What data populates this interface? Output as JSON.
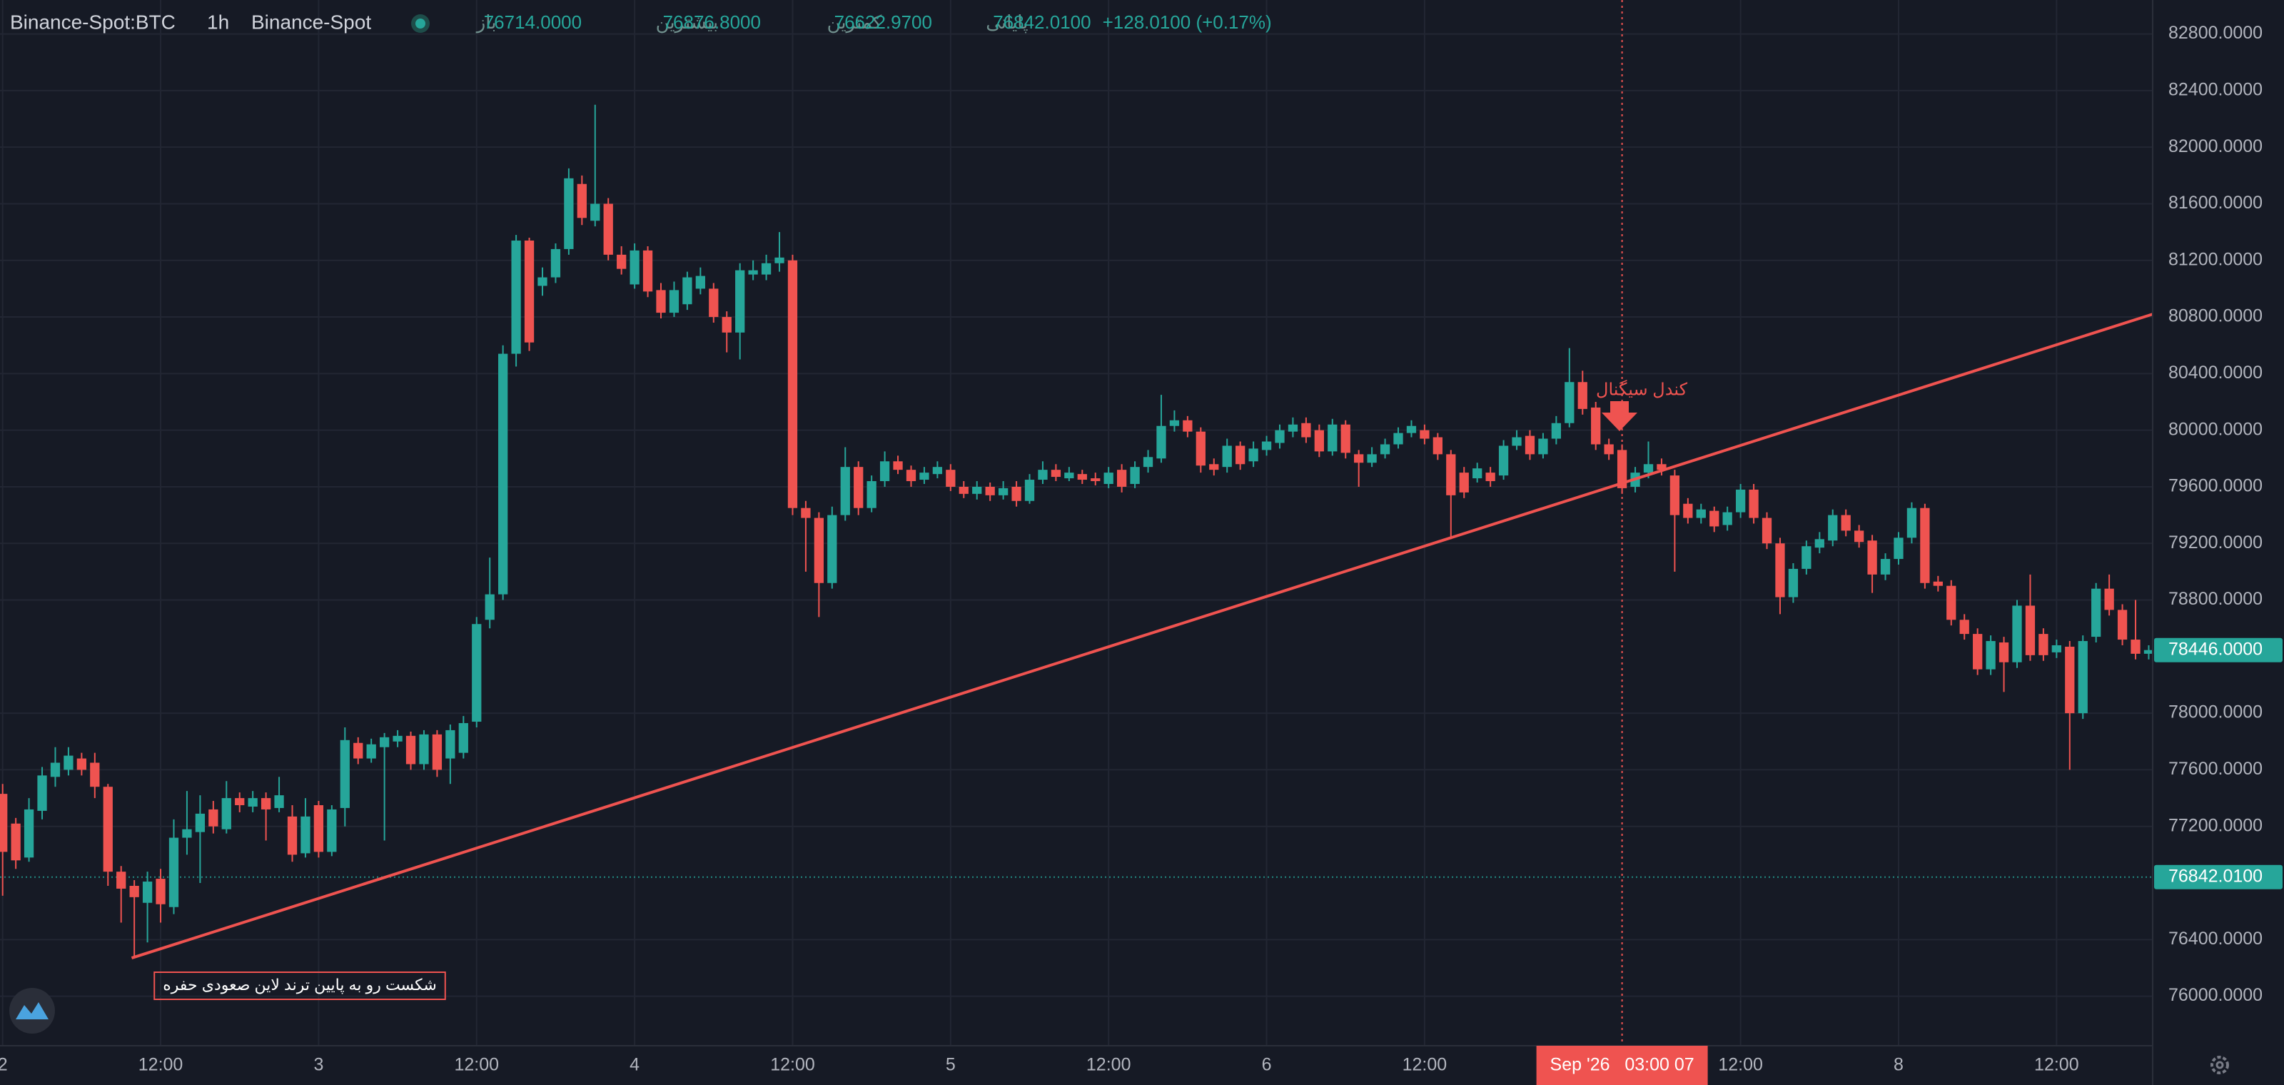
{
  "chart_data": {
    "type": "candlestick",
    "header": {
      "symbol": "Binance-Spot:BTC",
      "interval": "1h",
      "exchange": "Binance-Spot",
      "ohlc": [
        {
          "label": "باز",
          "value": "76714.0000"
        },
        {
          "label": "بیشترین",
          "value": "76876.8000"
        },
        {
          "label": "کمترین",
          "value": "76622.9700"
        },
        {
          "label": "پایانی",
          "value": "76842.0100"
        }
      ],
      "change": "+128.0100 (+0.17%)"
    },
    "up_color": "#26a69a",
    "down_color": "#ef5350",
    "open": [
      77430,
      77220,
      76980,
      77310,
      77550,
      77600,
      77680,
      77650,
      77480,
      76880,
      76780,
      76660,
      76830,
      76630,
      77120,
      77160,
      77320,
      77180,
      77400,
      77340,
      77400,
      77330,
      77270,
      77010,
      77350,
      77020,
      77330,
      77790,
      77680,
      77760,
      77800,
      77840,
      77640,
      77850,
      77680,
      77720,
      77940,
      78660,
      78840,
      80540,
      81340,
      81020,
      81080,
      81280,
      81740,
      81480,
      81600,
      81240,
      81030,
      81270,
      80990,
      80830,
      80890,
      81000,
      81000,
      80800,
      80690,
      81100,
      81100,
      81180,
      81200,
      79450,
      79380,
      78920,
      79400,
      79740,
      79450,
      79640,
      79780,
      79720,
      79650,
      79690,
      79720,
      79600,
      79550,
      79600,
      79540,
      79600,
      79500,
      79650,
      79720,
      79660,
      79690,
      79660,
      79620,
      79720,
      79620,
      79740,
      79800,
      80030,
      80070,
      79990,
      79760,
      79740,
      79890,
      79780,
      79860,
      79910,
      79990,
      80050,
      80000,
      79850,
      80040,
      79830,
      79770,
      79830,
      79900,
      79980,
      80000,
      79950,
      79830,
      79700,
      79660,
      79700,
      79680,
      79890,
      79960,
      79830,
      79940,
      80050,
      80340,
      80160,
      79900,
      79860,
      79600,
      79700,
      79760,
      79680,
      79480,
      79380,
      79430,
      79330,
      79420,
      79580,
      79380,
      79200,
      78820,
      79020,
      79170,
      79220,
      79400,
      79290,
      79220,
      78980,
      79090,
      79240,
      79450,
      78930,
      78900,
      78660,
      78560,
      78310,
      78500,
      78360,
      78760,
      78560,
      78430,
      78470,
      78000,
      78540,
      78880,
      78730,
      78520,
      78420
    ],
    "high": [
      77500,
      77260,
      77400,
      77620,
      77760,
      77760,
      77720,
      77720,
      77500,
      76920,
      76820,
      76880,
      76900,
      77250,
      77450,
      77420,
      77380,
      77520,
      77440,
      77450,
      77440,
      77550,
      77350,
      77400,
      77380,
      77350,
      77900,
      77830,
      77820,
      77860,
      77880,
      77870,
      77880,
      77880,
      77920,
      77980,
      78680,
      79100,
      80600,
      81380,
      81360,
      81150,
      81320,
      81850,
      81800,
      82300,
      81640,
      81300,
      81320,
      81300,
      81040,
      81050,
      81120,
      81150,
      81040,
      80840,
      81180,
      81200,
      81240,
      81400,
      81240,
      79500,
      79420,
      79460,
      79880,
      79780,
      79680,
      79850,
      79820,
      79750,
      79740,
      79780,
      79760,
      79640,
      79640,
      79630,
      79640,
      79640,
      79690,
      79780,
      79760,
      79740,
      79720,
      79700,
      79740,
      79760,
      79780,
      79860,
      80250,
      80140,
      80100,
      80020,
      79800,
      79940,
      79920,
      79920,
      79960,
      80040,
      80090,
      80090,
      80040,
      80080,
      80070,
      79860,
      79880,
      79940,
      80020,
      80070,
      80040,
      79980,
      79860,
      79740,
      79770,
      79740,
      79930,
      80000,
      80000,
      79980,
      80100,
      80580,
      80420,
      80200,
      79940,
      79900,
      79740,
      79920,
      79800,
      79720,
      79520,
      79480,
      79460,
      79460,
      79620,
      79620,
      79420,
      79240,
      79060,
      79220,
      79280,
      79440,
      79440,
      79330,
      79260,
      79130,
      79280,
      79490,
      79480,
      78970,
      78940,
      78700,
      78600,
      78550,
      78540,
      78800,
      78980,
      78600,
      78520,
      78510,
      78550,
      78920,
      78980,
      78770,
      78800,
      78480
    ],
    "low": [
      76710,
      76900,
      76950,
      77250,
      77480,
      77560,
      77560,
      77400,
      76780,
      76520,
      76270,
      76380,
      76520,
      76580,
      77000,
      76800,
      77150,
      77150,
      77300,
      77300,
      77100,
      77300,
      76950,
      76980,
      76980,
      76990,
      77200,
      77640,
      77650,
      77100,
      77760,
      77600,
      77600,
      77550,
      77500,
      77680,
      77900,
      78600,
      78800,
      80450,
      80560,
      80950,
      81040,
      81240,
      81450,
      81440,
      81200,
      81100,
      81000,
      80940,
      80790,
      80800,
      80850,
      80960,
      80760,
      80550,
      80500,
      81060,
      81060,
      81120,
      79400,
      79000,
      78680,
      78880,
      79360,
      79400,
      79420,
      79600,
      79690,
      79600,
      79620,
      79660,
      79570,
      79520,
      79510,
      79500,
      79510,
      79460,
      79480,
      79620,
      79640,
      79640,
      79620,
      79610,
      79590,
      79560,
      79590,
      79700,
      79770,
      79990,
      79950,
      79700,
      79680,
      79700,
      79720,
      79740,
      79820,
      79870,
      79950,
      79910,
      79810,
      79820,
      79800,
      79600,
      79740,
      79800,
      79870,
      79950,
      79900,
      79790,
      79230,
      79520,
      79630,
      79600,
      79650,
      79860,
      79790,
      79800,
      79900,
      80020,
      80110,
      79860,
      79790,
      79550,
      79560,
      79660,
      79680,
      79000,
      79340,
      79340,
      79280,
      79290,
      79380,
      79340,
      79160,
      78700,
      78780,
      78980,
      79130,
      79180,
      79250,
      79170,
      78850,
      78940,
      79050,
      79200,
      78880,
      78860,
      78620,
      78520,
      78270,
      78270,
      78150,
      78320,
      78370,
      78370,
      78390,
      77600,
      77960,
      78500,
      78690,
      78480,
      78380,
      78380
    ],
    "close": [
      77020,
      76960,
      77320,
      77560,
      77650,
      77700,
      77600,
      77480,
      76880,
      76760,
      76700,
      76810,
      76650,
      77120,
      77180,
      77290,
      77200,
      77400,
      77350,
      77400,
      77320,
      77420,
      77000,
      77270,
      77020,
      77320,
      77810,
      77680,
      77780,
      77830,
      77840,
      77640,
      77850,
      77600,
      77880,
      77930,
      78630,
      78840,
      80540,
      81340,
      80620,
      81080,
      81280,
      81780,
      81500,
      81600,
      81240,
      81140,
      81270,
      80980,
      80830,
      80990,
      81080,
      81090,
      80800,
      80690,
      81130,
      81130,
      81180,
      81220,
      79450,
      79380,
      78920,
      79400,
      79740,
      79450,
      79640,
      79780,
      79720,
      79640,
      79700,
      79740,
      79600,
      79550,
      79600,
      79540,
      79590,
      79500,
      79650,
      79720,
      79670,
      79700,
      79650,
      79640,
      79700,
      79600,
      79740,
      79810,
      80030,
      80070,
      79990,
      79750,
      79720,
      79890,
      79760,
      79870,
      79920,
      80000,
      80040,
      79950,
      79850,
      80040,
      79840,
      79770,
      79830,
      79900,
      79980,
      80030,
      79940,
      79830,
      79540,
      79560,
      79730,
      79640,
      79890,
      79950,
      79830,
      79940,
      80050,
      80340,
      80150,
      79900,
      79830,
      79590,
      79700,
      79760,
      79720,
      79400,
      79380,
      79440,
      79320,
      79420,
      79580,
      79380,
      79200,
      78820,
      79020,
      79180,
      79230,
      79400,
      79290,
      79210,
      78980,
      79090,
      79240,
      79450,
      78920,
      78900,
      78660,
      78560,
      78310,
      78510,
      78360,
      78760,
      78410,
      78410,
      78480,
      78000,
      78510,
      78880,
      78730,
      78520,
      78420,
      78446
    ],
    "xlim": [
      -0.2,
      163.3
    ],
    "ylim": [
      75650,
      83040
    ],
    "xticks": [
      {
        "value": 0,
        "label": "2"
      },
      {
        "value": 12,
        "label": "12:00"
      },
      {
        "value": 24,
        "label": "3"
      },
      {
        "value": 36,
        "label": "12:00"
      },
      {
        "value": 48,
        "label": "4"
      },
      {
        "value": 60,
        "label": "12:00"
      },
      {
        "value": 72,
        "label": "5"
      },
      {
        "value": 84,
        "label": "12:00"
      },
      {
        "value": 96,
        "label": "6"
      },
      {
        "value": 108,
        "label": "12:00"
      },
      {
        "value": 132,
        "label": "12:00"
      },
      {
        "value": 144,
        "label": "8"
      },
      {
        "value": 156,
        "label": "12:00"
      }
    ],
    "yticks": [
      {
        "value": 76000,
        "label": "76000.0000"
      },
      {
        "value": 76400,
        "label": "76400.0000"
      },
      {
        "value": 77200,
        "label": "77200.0000"
      },
      {
        "value": 77600,
        "label": "77600.0000"
      },
      {
        "value": 78000,
        "label": "78000.0000"
      },
      {
        "value": 78800,
        "label": "78800.0000"
      },
      {
        "value": 79200,
        "label": "79200.0000"
      },
      {
        "value": 79600,
        "label": "79600.0000"
      },
      {
        "value": 80000,
        "label": "80000.0000"
      },
      {
        "value": 80400,
        "label": "80400.0000"
      },
      {
        "value": 80800,
        "label": "80800.0000"
      },
      {
        "value": 81200,
        "label": "81200.0000"
      },
      {
        "value": 81600,
        "label": "81600.0000"
      },
      {
        "value": 82000,
        "label": "82000.0000"
      },
      {
        "value": 82400,
        "label": "82400.0000"
      },
      {
        "value": 82800,
        "label": "82800.0000"
      }
    ],
    "grid": true,
    "price_lines": [
      {
        "value": 78446,
        "label": "78446.0000",
        "color": "#26a69a",
        "dotted": false
      },
      {
        "value": 76842.01,
        "label": "76842.0100",
        "color": "#26a69a",
        "dotted": true
      }
    ],
    "trendline": {
      "x": [
        9.8,
        163.3
      ],
      "y": [
        76270,
        80820
      ],
      "color": "#ef5350"
    },
    "crosshair": {
      "x": 123,
      "label": "Sep '26   03:00 07",
      "color": "#ef5350"
    },
    "annotations": [
      {
        "text": "شکست رو به پایین ترند لاین صعودی حفره"
      },
      {
        "text": "کندل سیگنال"
      }
    ]
  }
}
